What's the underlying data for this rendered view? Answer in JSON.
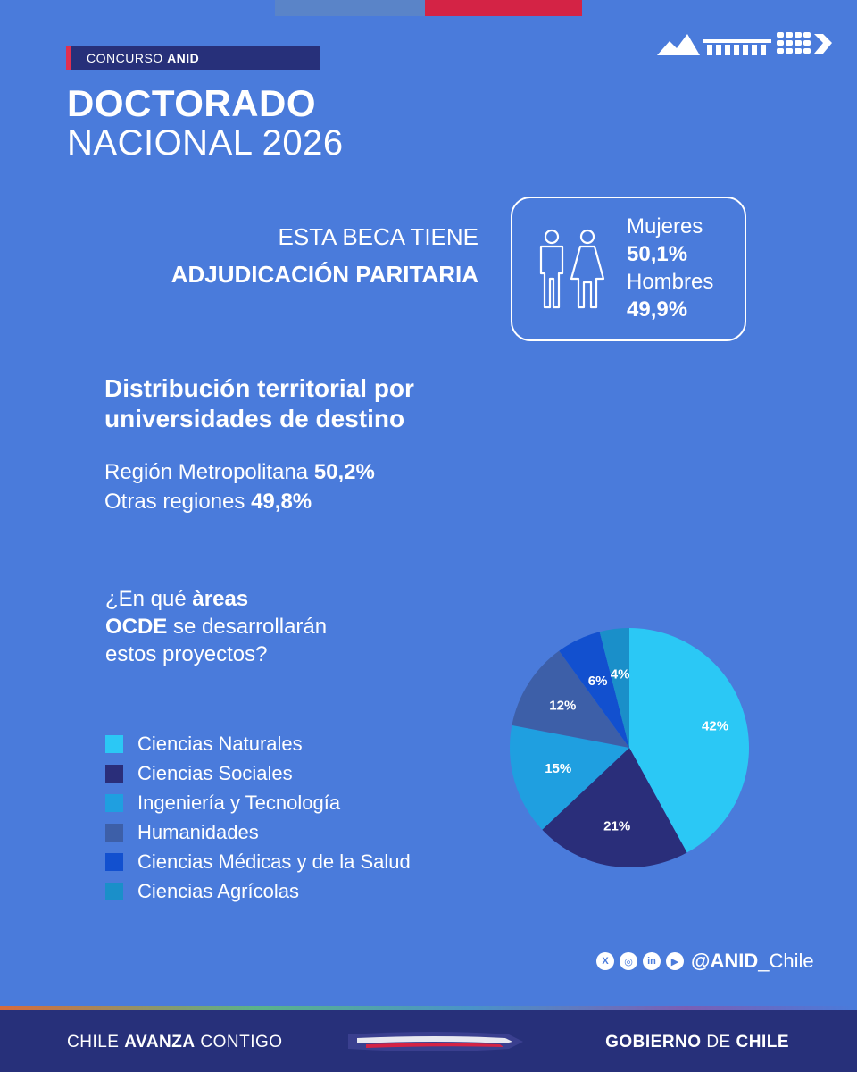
{
  "tag": {
    "prefix": "CONCURSO ",
    "bold": "ANID"
  },
  "title": {
    "line1": "DOCTORADO",
    "line2": "NACIONAL 2026"
  },
  "beca": {
    "line1": "ESTA BECA TIENE",
    "line2": "ADJUDICACIÓN PARITARIA"
  },
  "gender": {
    "women_label": "Mujeres",
    "women_value": "50,1%",
    "men_label": "Hombres",
    "men_value": "49,9%"
  },
  "distribution": {
    "title": "Distribución territorial por universidades de destino",
    "rm_label": "Región Metropolitana ",
    "rm_value": "50,2%",
    "other_label": "Otras regiones ",
    "other_value": "49,8%"
  },
  "question": {
    "p1": "¿En qué ",
    "b1": "àreas",
    "b2": "OCDE",
    "p2": " se desarrollarán",
    "p3": "estos proyectos?"
  },
  "colors": {
    "background": "#4a7bdb",
    "naturales": "#2bc8f5",
    "sociales": "#2a2e7a",
    "ingenieria": "#1f9fe0",
    "humanidades": "#3d5fa8",
    "medicas": "#1250cf",
    "agricolas": "#1a8fc9"
  },
  "chart_data": {
    "type": "pie",
    "title": "",
    "categories": [
      "Ciencias Naturales",
      "Ciencias Sociales",
      "Ingeniería y Tecnología",
      "Humanidades",
      "Ciencias Médicas y de la Salud",
      "Ciencias Agrícolas"
    ],
    "values": [
      42,
      21,
      15,
      12,
      6,
      4
    ],
    "labels": [
      "42%",
      "21%",
      "15%",
      "12%",
      "6%",
      "4%"
    ],
    "colors": [
      "#2bc8f5",
      "#2a2e7a",
      "#1f9fe0",
      "#3d5fa8",
      "#1250cf",
      "#1a8fc9"
    ],
    "legend": "left"
  },
  "social": {
    "icons": [
      "x-icon",
      "instagram-icon",
      "linkedin-icon",
      "youtube-icon"
    ],
    "handle_bold": "@ANID",
    "handle_rest": "_Chile"
  },
  "footer": {
    "left_p1": "CHILE ",
    "left_b": "AVANZA",
    "left_p2": " CONTIGO",
    "right_b1": "GOBIERNO",
    "right_p": " DE ",
    "right_b2": "CHILE"
  }
}
